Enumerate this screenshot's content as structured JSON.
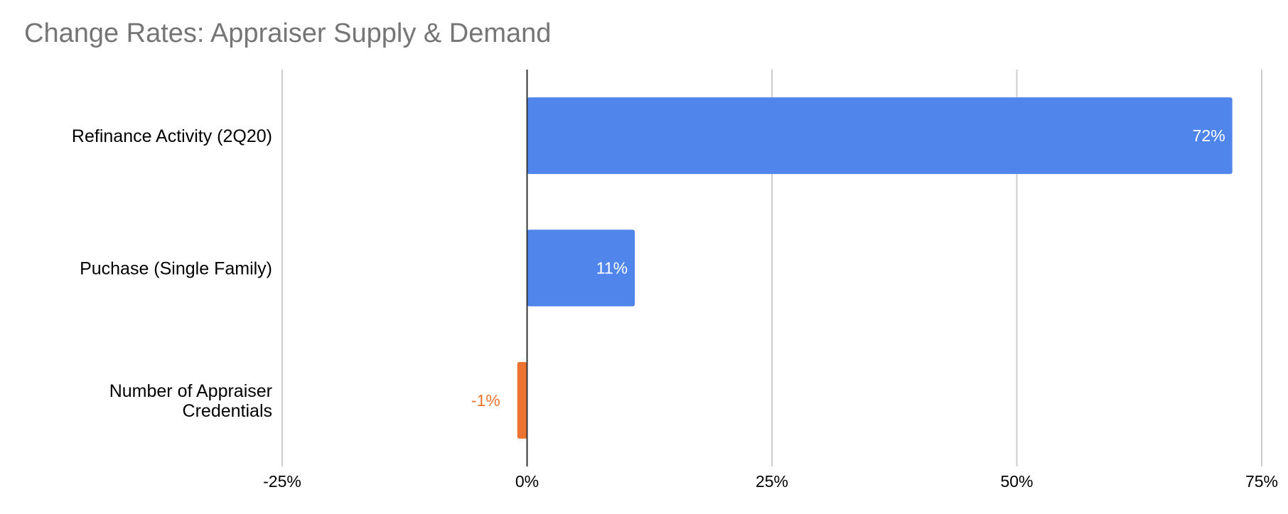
{
  "title": "Change Rates: Appraiser Supply & Demand",
  "chart_data": {
    "type": "bar",
    "orientation": "horizontal",
    "title": "Change Rates: Appraiser Supply & Demand",
    "xlabel": "",
    "ylabel": "",
    "categories": [
      "Refinance Activity (2Q20)",
      "Puchase (Single Family)",
      "Number of Appraiser Credentials"
    ],
    "values": [
      72,
      11,
      -1
    ],
    "data_labels": [
      "72%",
      "11%",
      "-1%"
    ],
    "xlim": [
      -25,
      75
    ],
    "ticks": [
      -25,
      0,
      25,
      50,
      75
    ],
    "tick_labels": [
      "-25%",
      "0%",
      "25%",
      "50%",
      "75%"
    ],
    "grid": true,
    "legend": "none",
    "colors": {
      "positive": "#5086ec",
      "negative": "#ed7330",
      "positive_label": "#ffffff",
      "negative_label": "#ed7330",
      "gridline": "#cccccc",
      "zero_line": "#333333"
    }
  }
}
